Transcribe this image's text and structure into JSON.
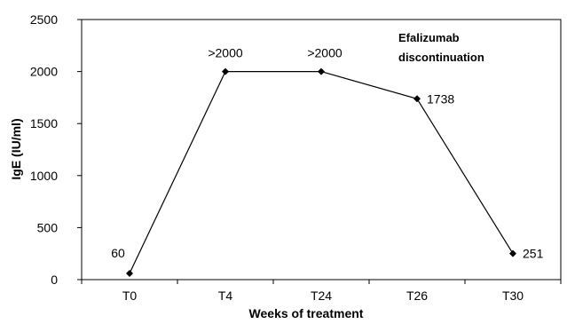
{
  "chart_data": {
    "type": "line",
    "xlabel": "Weeks of treatment",
    "ylabel": "IgE (IU/ml)",
    "categories": [
      "T0",
      "T4",
      "T24",
      "T26",
      "T30"
    ],
    "values": [
      60,
      2000,
      2000,
      1738,
      251
    ],
    "data_labels": [
      "60",
      ">2000",
      ">2000",
      "1738",
      "251"
    ],
    "ylim": [
      0,
      2500
    ],
    "yticks": [
      "0",
      "500",
      "1000",
      "1500",
      "2000",
      "2500"
    ],
    "annotation": {
      "line1": "Efalizumab",
      "line2": "discontinuation"
    },
    "grid": false,
    "legend": "none",
    "line_color": "#000000",
    "marker": "diamond"
  }
}
